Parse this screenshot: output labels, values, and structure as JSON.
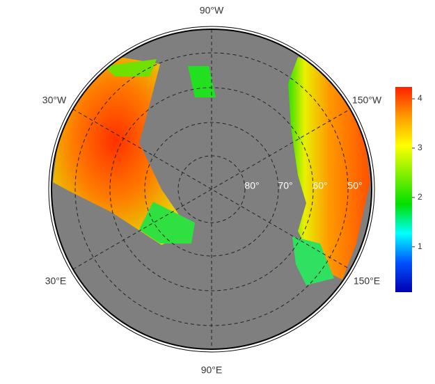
{
  "map": {
    "longitude_labels": [
      "90°W",
      "30°W",
      "150°W",
      "30°E",
      "150°E",
      "90°E"
    ],
    "latitude_labels": [
      "80°",
      "70°",
      "60°",
      "50°"
    ],
    "colorbar": {
      "lim": [
        0.08,
        4.24
      ],
      "ticks": [
        1,
        2,
        3,
        4
      ],
      "colors": [
        "#0000b0",
        "#0050ff",
        "#00ffff",
        "#00e000",
        "#80f000",
        "#ffff00",
        "#ff9900",
        "#ff2000"
      ]
    }
  }
}
